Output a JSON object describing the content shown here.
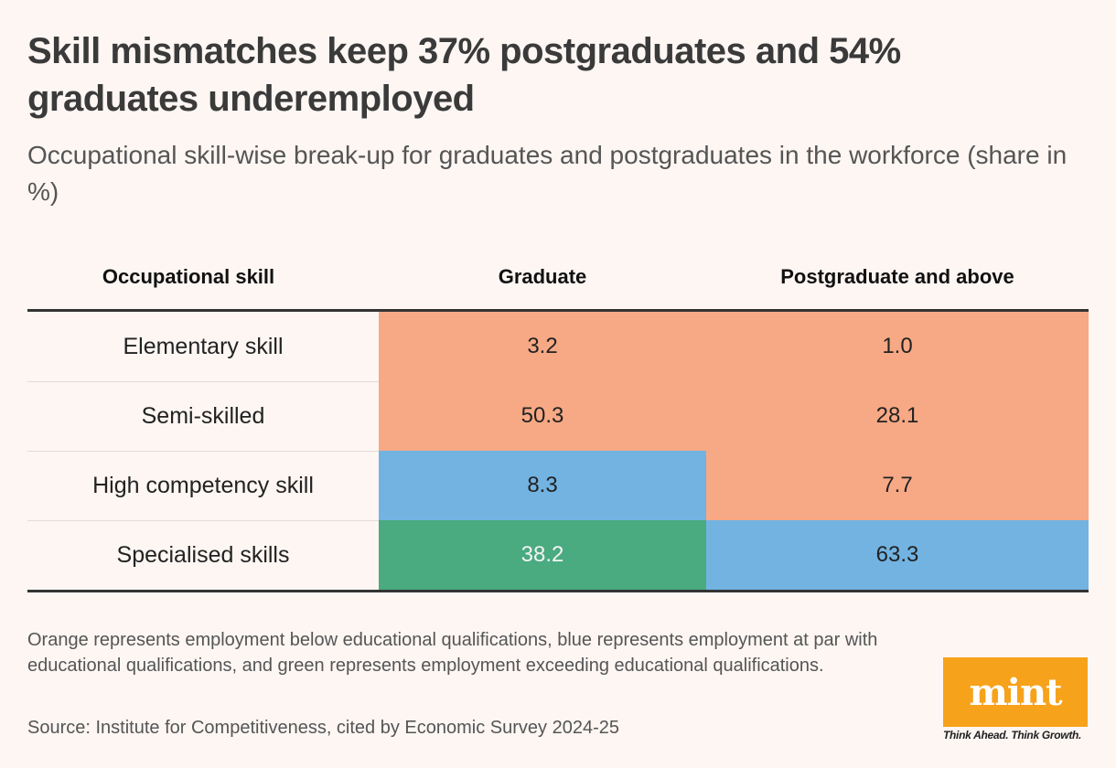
{
  "header": {
    "title": "Skill mismatches keep 37% postgraduates and 54% graduates underemployed",
    "subtitle": "Occupational skill-wise break-up for graduates and postgraduates in the workforce (share in %)"
  },
  "colors": {
    "orange": "#f7a985",
    "blue": "#72b3e2",
    "green": "#4aaa80",
    "background": "#fdf6f3",
    "logo": "#f7a21b"
  },
  "chart_data": {
    "type": "table",
    "title": "Skill mismatches keep 37% postgraduates and 54% graduates underemployed",
    "subtitle": "Occupational skill-wise break-up for graduates and postgraduates in the workforce (share in %)",
    "columns": [
      "Occupational skill",
      "Graduate",
      "Postgraduate and above"
    ],
    "rows": [
      {
        "label": "Elementary skill",
        "graduate": {
          "value": "3.2",
          "category": "orange"
        },
        "postgraduate": {
          "value": "1.0",
          "category": "orange"
        }
      },
      {
        "label": "Semi-skilled",
        "graduate": {
          "value": "50.3",
          "category": "orange"
        },
        "postgraduate": {
          "value": "28.1",
          "category": "orange"
        }
      },
      {
        "label": "High competency skill",
        "graduate": {
          "value": "8.3",
          "category": "blue"
        },
        "postgraduate": {
          "value": "7.7",
          "category": "orange"
        }
      },
      {
        "label": "Specialised skills",
        "graduate": {
          "value": "38.2",
          "category": "green"
        },
        "postgraduate": {
          "value": "63.3",
          "category": "blue"
        }
      }
    ]
  },
  "footer": {
    "note": "Orange represents employment below educational qualifications, blue represents employment at par with educational qualifications, and green represents employment exceeding educational qualifications.",
    "source": "Source: Institute for Competitiveness, cited by Economic Survey 2024-25"
  },
  "logo": {
    "text": "mint",
    "tagline": "Think Ahead. Think Growth."
  }
}
